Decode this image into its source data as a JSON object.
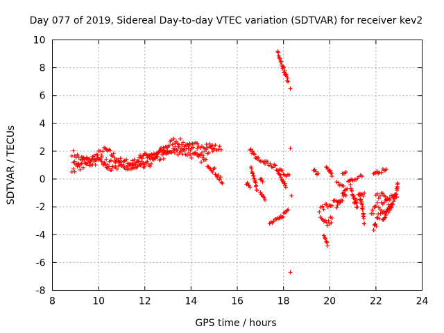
{
  "chart_data": {
    "type": "scatter",
    "title": "Day 077 of 2019, Sidereal Day-to-day VTEC variation (SDTVAR) for receiver kev2",
    "xlabel": "GPS time / hours",
    "ylabel": "SDTVAR / TECUs",
    "xlim": [
      8,
      24
    ],
    "ylim": [
      -8,
      10
    ],
    "xticks": [
      8,
      10,
      12,
      14,
      16,
      18,
      20,
      22,
      24
    ],
    "yticks": [
      -8,
      -6,
      -4,
      -2,
      0,
      2,
      4,
      6,
      8,
      10
    ],
    "grid": true,
    "marker": "+",
    "color": "#ff0000",
    "series": [
      {
        "name": "sdtvar",
        "segments": [
          {
            "points": [
              [
                8.85,
                1.9
              ],
              [
                9.2,
                1.5
              ],
              [
                9.6,
                1.3
              ],
              [
                10.0,
                1.8
              ],
              [
                10.3,
                2.1
              ],
              [
                10.7,
                1.6
              ],
              [
                11.0,
                1.2
              ],
              [
                11.4,
                1.0
              ],
              [
                11.8,
                1.5
              ],
              [
                12.0,
                1.9
              ],
              [
                12.3,
                1.5
              ],
              [
                12.6,
                1.9
              ],
              [
                13.0,
                2.4
              ],
              [
                13.3,
                2.8
              ],
              [
                13.6,
                2.6
              ],
              [
                14.0,
                2.3
              ],
              [
                14.4,
                2.5
              ],
              [
                14.8,
                2.4
              ],
              [
                15.3,
                2.1
              ]
            ],
            "spread": 0.25
          },
          {
            "points": [
              [
                8.85,
                0.7
              ],
              [
                9.2,
                0.9
              ],
              [
                9.6,
                1.1
              ],
              [
                10.0,
                1.3
              ],
              [
                10.4,
                1.2
              ],
              [
                10.8,
                1.0
              ],
              [
                11.2,
                1.2
              ],
              [
                11.6,
                1.1
              ],
              [
                12.0,
                1.2
              ],
              [
                12.4,
                1.7
              ],
              [
                12.8,
                2.0
              ],
              [
                13.1,
                1.9
              ],
              [
                13.5,
                2.0
              ],
              [
                13.9,
                1.8
              ],
              [
                14.2,
                1.6
              ],
              [
                14.5,
                1.4
              ],
              [
                14.8,
                1.0
              ],
              [
                15.1,
                0.4
              ],
              [
                15.35,
                -0.3
              ]
            ],
            "spread": 0.25
          },
          {
            "points": [
              [
                8.9,
                1.1
              ],
              [
                9.3,
                1.2
              ],
              [
                9.8,
                1.6
              ],
              [
                10.2,
                1.3
              ],
              [
                10.6,
                0.7
              ],
              [
                11.0,
                0.8
              ],
              [
                11.5,
                0.7
              ],
              [
                12.0,
                0.9
              ],
              [
                12.5,
                1.4
              ],
              [
                13.0,
                1.8
              ],
              [
                13.4,
                2.2
              ],
              [
                13.8,
                2.3
              ],
              [
                14.2,
                2.0
              ],
              [
                14.6,
                1.9
              ],
              [
                15.0,
                2.2
              ]
            ],
            "spread": 0.25
          },
          {
            "points": [
              [
                16.55,
                2.2
              ],
              [
                16.75,
                1.7
              ],
              [
                16.95,
                1.3
              ],
              [
                17.2,
                1.1
              ]
            ],
            "spread": 0.15
          },
          {
            "points": [
              [
                16.6,
                0.8
              ],
              [
                16.75,
                0.0
              ],
              [
                16.85,
                -0.8
              ]
            ],
            "spread": 0.12
          },
          {
            "points": [
              [
                17.0,
                -1.0
              ],
              [
                17.2,
                -1.5
              ]
            ],
            "spread": 0.12
          },
          {
            "points": [
              [
                16.4,
                -0.3
              ],
              [
                16.55,
                -0.6
              ]
            ],
            "spread": 0.1
          },
          {
            "points": [
              [
                17.0,
                0.0
              ],
              [
                17.1,
                -0.2
              ]
            ],
            "spread": 0.1
          },
          {
            "points": [
              [
                17.2,
                1.2
              ],
              [
                17.6,
                0.9
              ],
              [
                18.0,
                0.4
              ],
              [
                18.25,
                0.3
              ]
            ],
            "spread": 0.15
          },
          {
            "points": [
              [
                17.75,
                0.6
              ],
              [
                17.95,
                0.0
              ],
              [
                18.1,
                -0.6
              ]
            ],
            "spread": 0.12
          },
          {
            "points": [
              [
                17.4,
                -3.2
              ],
              [
                17.8,
                -2.9
              ],
              [
                18.2,
                -2.2
              ]
            ],
            "spread": 0.15
          },
          {
            "points": [
              [
                17.75,
                9.2
              ],
              [
                17.9,
                8.4
              ],
              [
                18.05,
                7.7
              ],
              [
                18.2,
                7.0
              ]
            ],
            "spread": 0.15
          },
          {
            "points": [
              [
                18.3,
                6.5
              ]
            ],
            "spread": 0.0
          },
          {
            "points": [
              [
                18.3,
                2.2
              ]
            ],
            "spread": 0.0
          },
          {
            "points": [
              [
                18.3,
                -6.7
              ]
            ],
            "spread": 0.0
          },
          {
            "points": [
              [
                18.35,
                -1.2
              ]
            ],
            "spread": 0.0
          },
          {
            "points": [
              [
                19.3,
                0.7
              ],
              [
                19.5,
                0.4
              ]
            ],
            "spread": 0.15
          },
          {
            "points": [
              [
                19.55,
                -2.2
              ],
              [
                19.8,
                -2.0
              ],
              [
                20.1,
                -1.8
              ],
              [
                20.4,
                -1.6
              ]
            ],
            "spread": 0.25
          },
          {
            "points": [
              [
                19.6,
                -3.0
              ],
              [
                19.8,
                -3.3
              ],
              [
                20.0,
                -3.1
              ],
              [
                20.1,
                -2.8
              ]
            ],
            "spread": 0.35
          },
          {
            "points": [
              [
                19.75,
                -4.2
              ],
              [
                19.85,
                -4.5
              ],
              [
                19.9,
                -4.8
              ]
            ],
            "spread": 0.2
          },
          {
            "points": [
              [
                19.85,
                1.0
              ],
              [
                20.0,
                0.6
              ],
              [
                20.1,
                0.2
              ]
            ],
            "spread": 0.15
          },
          {
            "points": [
              [
                20.3,
                -0.3
              ],
              [
                20.6,
                -0.5
              ]
            ],
            "spread": 0.12
          },
          {
            "points": [
              [
                20.3,
                -2.0
              ],
              [
                20.5,
                -1.5
              ],
              [
                20.7,
                -1.2
              ]
            ],
            "spread": 0.3
          },
          {
            "points": [
              [
                20.55,
                -1.0
              ],
              [
                20.75,
                -0.7
              ]
            ],
            "spread": 0.12
          },
          {
            "points": [
              [
                20.55,
                0.3
              ],
              [
                20.7,
                0.5
              ]
            ],
            "spread": 0.1
          },
          {
            "points": [
              [
                20.8,
                -0.2
              ],
              [
                21.0,
                0.0
              ],
              [
                21.2,
                0.1
              ],
              [
                21.4,
                0.2
              ]
            ],
            "spread": 0.15
          },
          {
            "points": [
              [
                20.9,
                -0.5
              ],
              [
                21.1,
                -1.5
              ],
              [
                21.2,
                -2.0
              ]
            ],
            "spread": 0.3
          },
          {
            "points": [
              [
                21.3,
                -1.0
              ],
              [
                21.4,
                -2.0
              ],
              [
                21.5,
                -3.2
              ]
            ],
            "spread": 0.3
          },
          {
            "points": [
              [
                21.0,
                -1.5
              ],
              [
                21.3,
                -1.3
              ],
              [
                21.5,
                -1.0
              ]
            ],
            "spread": 0.3
          },
          {
            "points": [
              [
                21.8,
                -2.5
              ],
              [
                22.0,
                -2.0
              ],
              [
                22.3,
                -1.8
              ],
              [
                22.6,
                -1.5
              ],
              [
                22.9,
                -1.3
              ]
            ],
            "spread": 0.3
          },
          {
            "points": [
              [
                21.9,
                -3.5
              ],
              [
                22.1,
                -2.8
              ],
              [
                22.4,
                -2.3
              ],
              [
                22.7,
                -1.8
              ]
            ],
            "spread": 0.3
          },
          {
            "points": [
              [
                22.0,
                -1.3
              ],
              [
                22.3,
                -1.0
              ],
              [
                22.6,
                -1.5
              ]
            ],
            "spread": 0.25
          },
          {
            "points": [
              [
                22.3,
                -3.0
              ],
              [
                22.6,
                -2.2
              ],
              [
                22.9,
                -0.8
              ],
              [
                22.95,
                -0.3
              ]
            ],
            "spread": 0.25
          },
          {
            "points": [
              [
                21.9,
                0.3
              ],
              [
                22.1,
                0.5
              ],
              [
                22.3,
                0.6
              ],
              [
                22.45,
                0.7
              ]
            ],
            "spread": 0.12
          }
        ]
      }
    ]
  }
}
